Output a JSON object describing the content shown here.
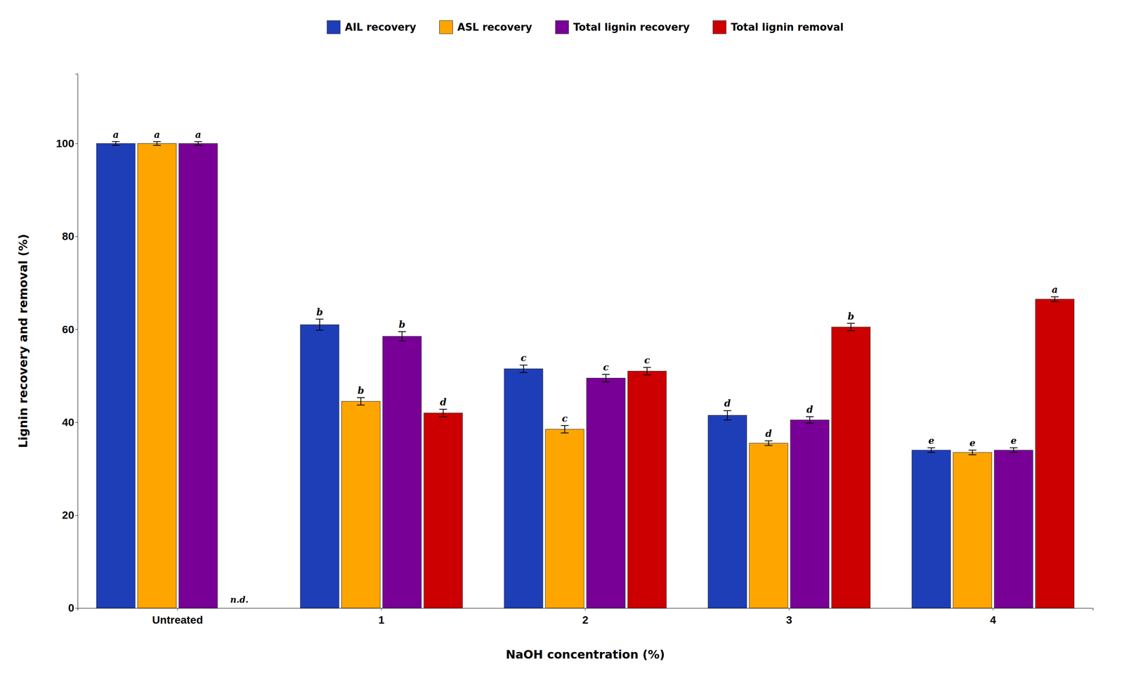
{
  "chart_data": {
    "type": "bar",
    "xlabel": "NaOH concentration (%)",
    "ylabel": "Lignin recovery and removal (%)",
    "categories": [
      "Untreated",
      "1",
      "2",
      "3",
      "4"
    ],
    "series": [
      {
        "name": "AIL recovery",
        "color": "#1e3eb8",
        "values": [
          100.0,
          61.0,
          51.5,
          41.5,
          34.0
        ],
        "errors": [
          0.4,
          1.2,
          0.8,
          1.0,
          0.5
        ],
        "letters": [
          "a",
          "b",
          "c",
          "d",
          "e"
        ]
      },
      {
        "name": "ASL recovery",
        "color": "#ffa500",
        "values": [
          100.0,
          44.5,
          38.5,
          35.5,
          33.5
        ],
        "errors": [
          0.4,
          0.8,
          0.8,
          0.5,
          0.5
        ],
        "letters": [
          "a",
          "b",
          "c",
          "d",
          "e"
        ]
      },
      {
        "name": "Total lignin recovery",
        "color": "#780096",
        "values": [
          100.0,
          58.5,
          49.5,
          40.5,
          34.0
        ],
        "errors": [
          0.4,
          1.0,
          0.8,
          0.7,
          0.5
        ],
        "letters": [
          "a",
          "b",
          "c",
          "d",
          "e"
        ]
      },
      {
        "name": "Total lignin removal",
        "color": "#cc0000",
        "values": [
          null,
          42.0,
          51.0,
          60.5,
          66.5
        ],
        "errors": [
          null,
          0.8,
          0.8,
          0.8,
          0.5
        ],
        "letters": [
          null,
          "d",
          "c",
          "b",
          "a"
        ]
      }
    ],
    "annotations": [
      {
        "text": "n.d.",
        "x": "Untreated",
        "series": "Total lignin removal"
      }
    ],
    "ylim": [
      0,
      115
    ],
    "yticks": [
      0,
      20,
      40,
      60,
      80,
      100
    ],
    "grid": false,
    "legend": "top"
  }
}
